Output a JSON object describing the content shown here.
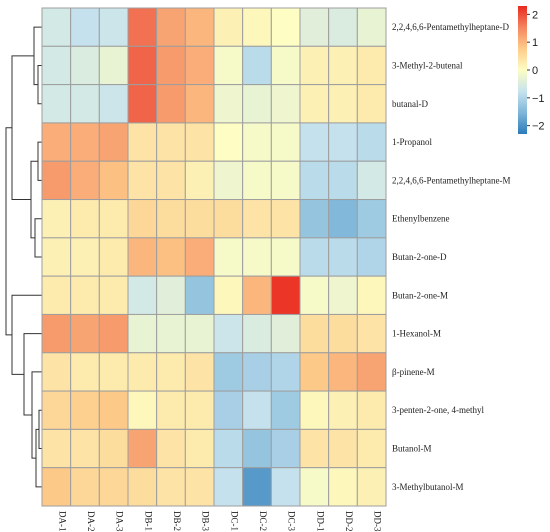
{
  "chart_data": {
    "type": "heatmap",
    "title": "",
    "xlabel": "",
    "ylabel": "",
    "columns": [
      "DA-1",
      "DA-2",
      "DA-3",
      "DB-1",
      "DB-2",
      "DB-3",
      "DC-1",
      "DC-2",
      "DC-3",
      "DD-1",
      "DD-2",
      "DD-3"
    ],
    "rows": [
      "2,2,4,6,6-Pentamethylheptane-D",
      "3-Methyl-2-butenal",
      "butanal-D",
      "1-Propanol",
      "2,2,4,6,6-Pentamethylheptane-M",
      "Ethenylbenzene",
      "Butan-2-one-D",
      "Butan-2-one-M",
      "1-Hexanol-M",
      "β-pinene-M",
      "3-penten-2-one, 4-methyl",
      "Butanol-M",
      "3-Methylbutanol-M"
    ],
    "values": [
      [
        -0.6,
        -0.8,
        -0.7,
        1.7,
        1.2,
        1.0,
        0.2,
        0.1,
        0.0,
        -0.4,
        -0.5,
        -0.3
      ],
      [
        -0.6,
        -0.5,
        -0.3,
        1.8,
        1.3,
        1.1,
        -0.1,
        -0.9,
        -0.1,
        0.2,
        0.2,
        0.3
      ],
      [
        -0.6,
        -0.6,
        -0.7,
        1.8,
        1.3,
        1.0,
        -0.2,
        -0.3,
        -0.2,
        0.2,
        0.2,
        0.3
      ],
      [
        1.1,
        1.1,
        1.2,
        0.4,
        0.4,
        0.4,
        0.0,
        -0.1,
        -0.1,
        -0.8,
        -0.8,
        -0.9
      ],
      [
        1.3,
        1.1,
        0.9,
        0.4,
        0.4,
        0.2,
        -0.2,
        -0.1,
        -0.1,
        -0.9,
        -0.9,
        -0.6
      ],
      [
        0.2,
        0.3,
        0.3,
        0.6,
        0.5,
        0.5,
        0.5,
        0.4,
        0.4,
        -1.3,
        -1.5,
        -1.2
      ],
      [
        0.2,
        0.2,
        0.3,
        1.0,
        0.9,
        1.1,
        -0.1,
        -0.1,
        -0.1,
        -0.9,
        -0.9,
        -1.0
      ],
      [
        0.3,
        0.3,
        0.3,
        -0.6,
        -0.4,
        -1.3,
        0.1,
        1.0,
        2.2,
        -0.1,
        -0.2,
        0.1
      ],
      [
        1.3,
        1.2,
        1.3,
        -0.3,
        -0.3,
        -0.3,
        -0.7,
        -0.5,
        -0.4,
        0.5,
        0.5,
        0.4
      ],
      [
        0.4,
        0.3,
        0.3,
        0.3,
        0.3,
        0.4,
        -1.2,
        -1.1,
        -1.0,
        0.8,
        1.0,
        1.2
      ],
      [
        0.6,
        0.7,
        0.8,
        0.1,
        0.3,
        0.3,
        -1.1,
        -0.8,
        -1.2,
        0.1,
        0.2,
        0.3
      ],
      [
        0.4,
        0.4,
        0.5,
        1.2,
        0.4,
        0.3,
        -0.9,
        -1.3,
        -1.1,
        0.4,
        0.4,
        0.3
      ],
      [
        0.8,
        0.6,
        0.6,
        0.5,
        0.4,
        0.4,
        -0.8,
        -1.9,
        -0.8,
        -0.1,
        0.1,
        0.2
      ]
    ],
    "vmin": -2.3,
    "vmax": 2.3,
    "colorbar_ticks": [
      2,
      1,
      0,
      -1,
      -2
    ],
    "colorbar_tick_labels": [
      "2",
      "1",
      "0",
      "−1",
      "−2"
    ],
    "colormap": [
      "#2b7bba",
      "#7fb6d9",
      "#c7e3ee",
      "#fdfdc4",
      "#fdcc8a",
      "#f58560",
      "#e8291e"
    ],
    "row_dendrogram": "shown on left, column dendrogram not shown",
    "grid": true
  }
}
